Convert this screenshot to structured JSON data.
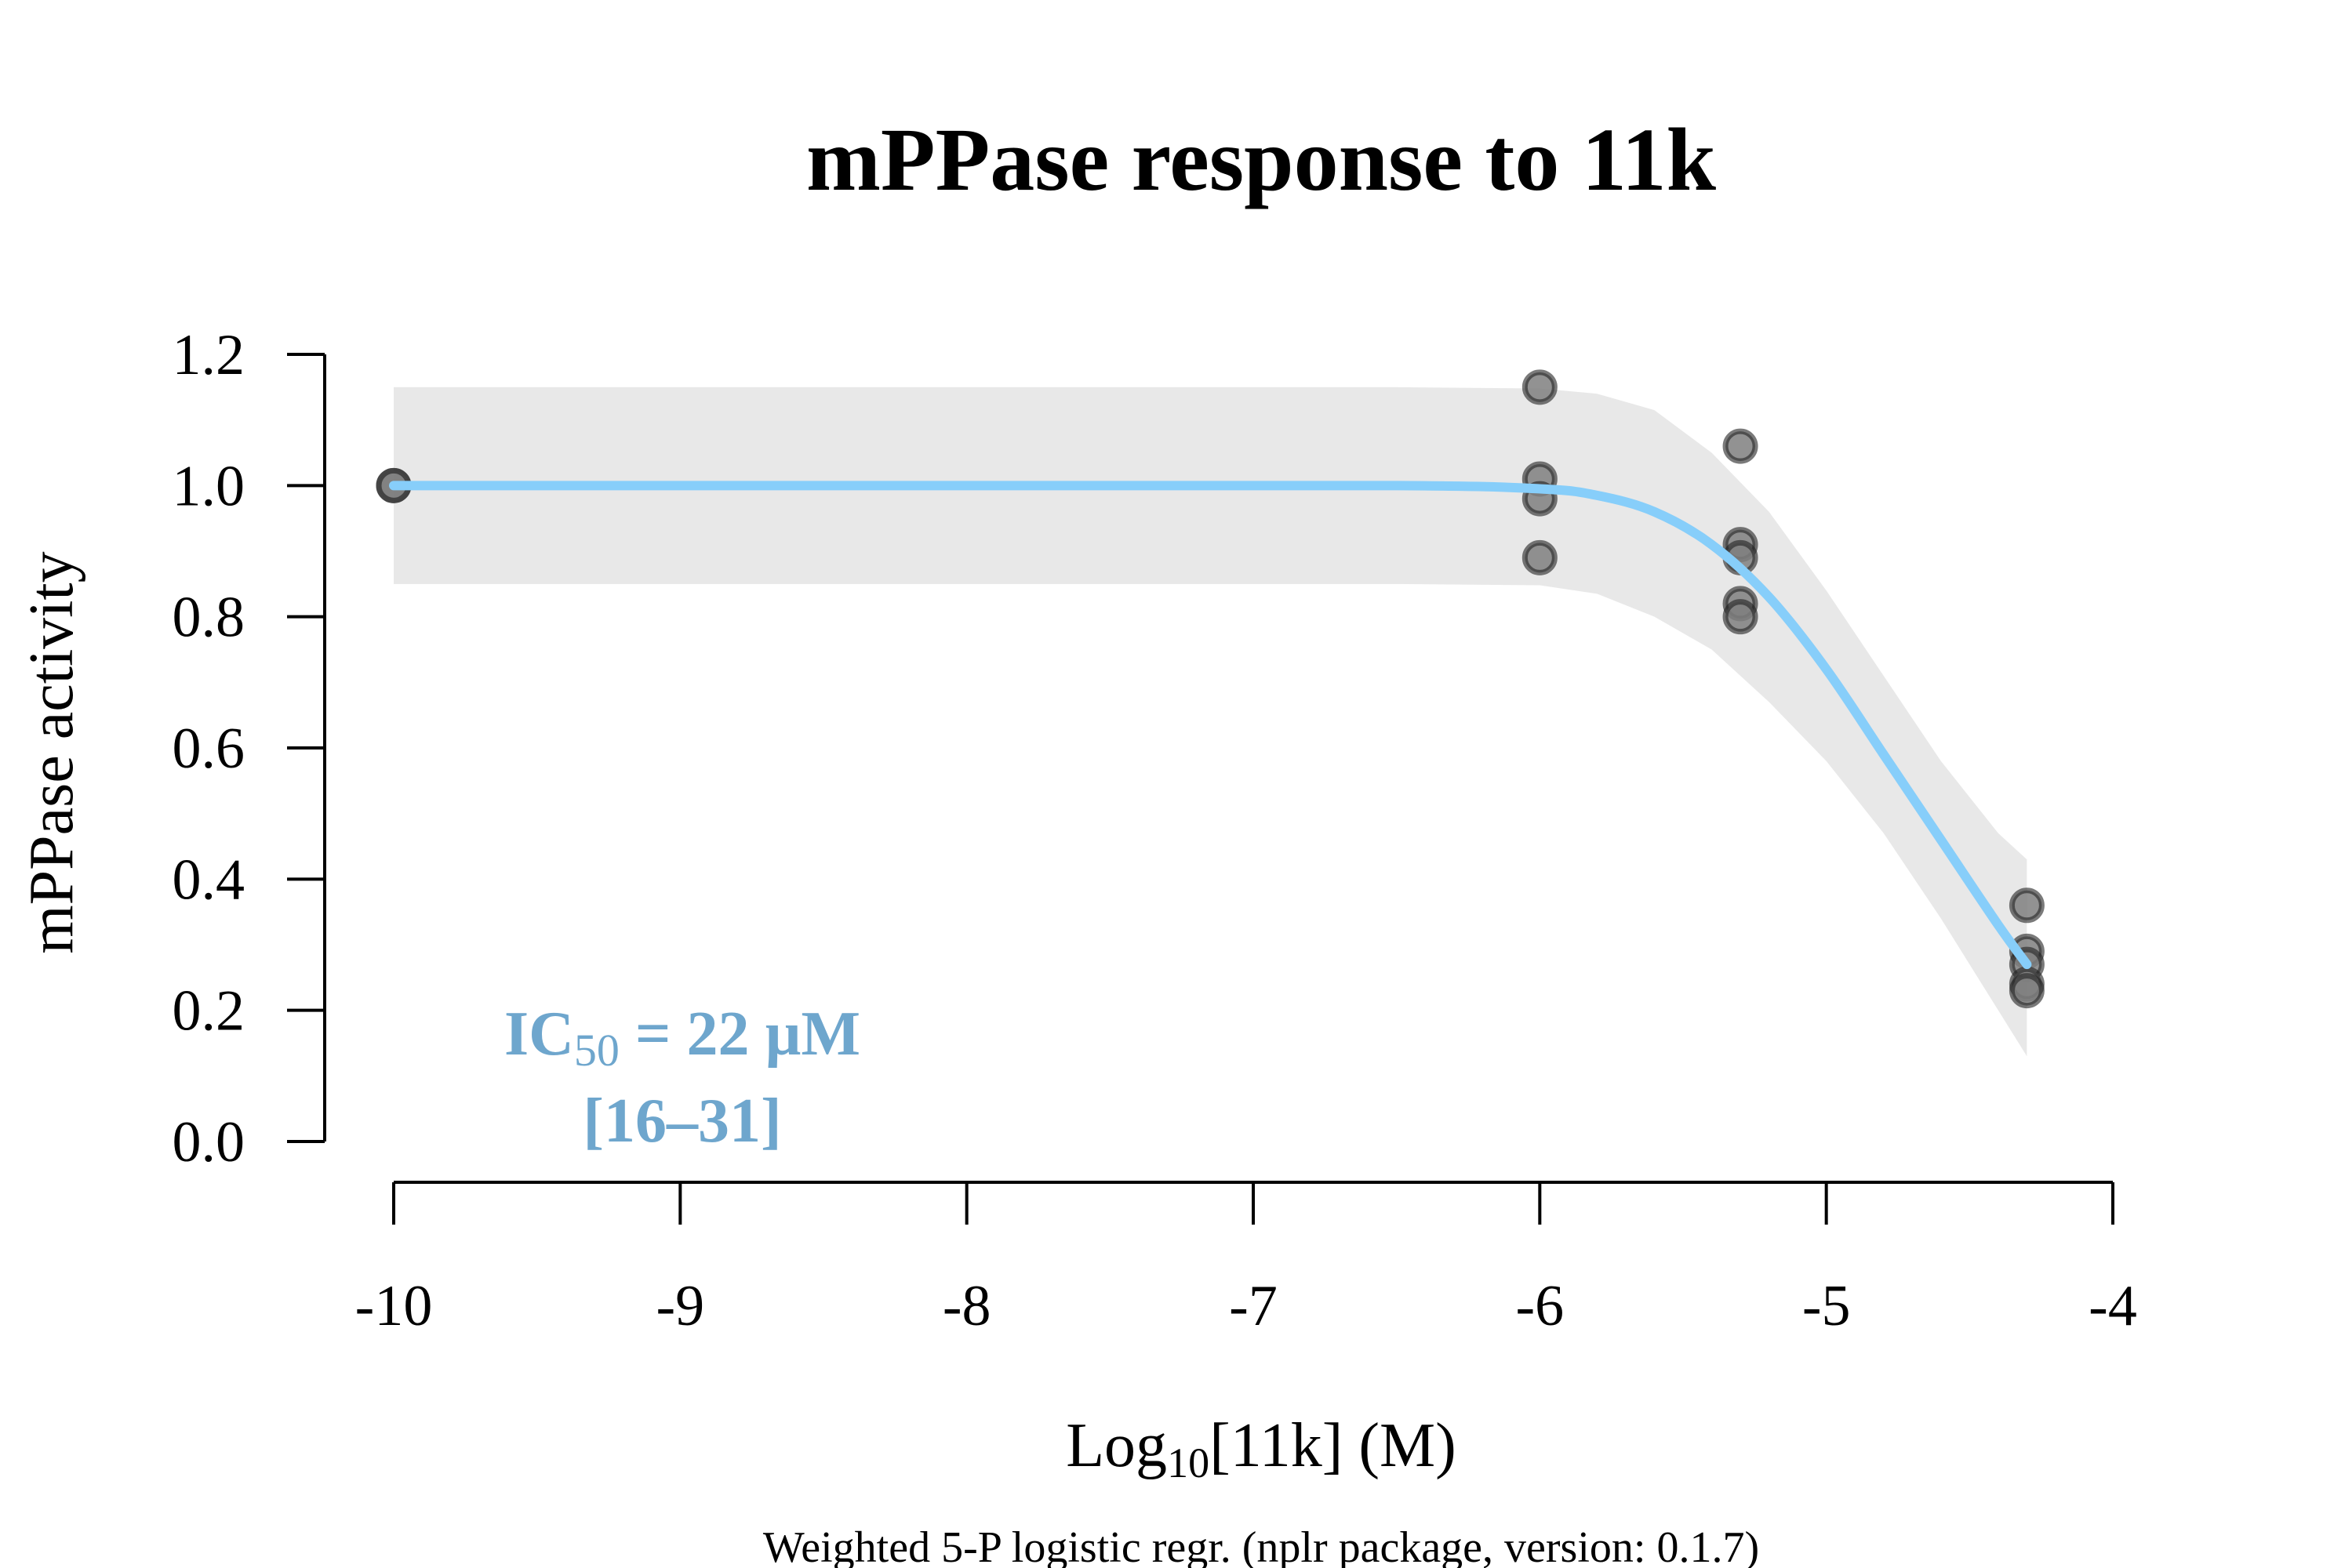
{
  "chart_data": {
    "type": "scatter",
    "title": "mPPase response to 11k",
    "xlabel": {
      "base": "Log",
      "sub": "10",
      "rest": "[11k] (M)"
    },
    "ylabel": "mPPase activity",
    "footnote": "Weighted 5-P logistic regr. (nplr package, version: 0.1.7)",
    "xlim": [
      -10,
      -4
    ],
    "ylim": [
      0,
      1.2
    ],
    "x_ticks": [
      "-10",
      "-9",
      "-8",
      "-7",
      "-6",
      "-5",
      "-4"
    ],
    "y_ticks": [
      "0.0",
      "0.2",
      "0.4",
      "0.6",
      "0.8",
      "1.0",
      "1.2"
    ],
    "annotation": {
      "prefix": "IC",
      "sub": "50",
      "suffix": " = 22 µM",
      "range": "[16–31]"
    },
    "points": [
      {
        "x": -10,
        "y": 1.0
      },
      {
        "x": -10,
        "y": 1.0
      },
      {
        "x": -6,
        "y": 1.15
      },
      {
        "x": -6,
        "y": 1.01
      },
      {
        "x": -6,
        "y": 0.98
      },
      {
        "x": -6,
        "y": 0.89
      },
      {
        "x": -5.3,
        "y": 1.06
      },
      {
        "x": -5.3,
        "y": 0.91
      },
      {
        "x": -5.3,
        "y": 0.89
      },
      {
        "x": -5.3,
        "y": 0.82
      },
      {
        "x": -5.3,
        "y": 0.8
      },
      {
        "x": -4.3,
        "y": 0.36
      },
      {
        "x": -4.3,
        "y": 0.29
      },
      {
        "x": -4.3,
        "y": 0.27
      },
      {
        "x": -4.3,
        "y": 0.24
      },
      {
        "x": -4.3,
        "y": 0.23
      }
    ],
    "fit_curve": [
      {
        "x": -10,
        "y": 1.0
      },
      {
        "x": -8,
        "y": 1.0
      },
      {
        "x": -6.5,
        "y": 1.0
      },
      {
        "x": -6.0,
        "y": 0.995
      },
      {
        "x": -5.8,
        "y": 0.985
      },
      {
        "x": -5.6,
        "y": 0.96
      },
      {
        "x": -5.4,
        "y": 0.91
      },
      {
        "x": -5.2,
        "y": 0.83
      },
      {
        "x": -5.0,
        "y": 0.72
      },
      {
        "x": -4.8,
        "y": 0.59
      },
      {
        "x": -4.6,
        "y": 0.46
      },
      {
        "x": -4.4,
        "y": 0.33
      },
      {
        "x": -4.3,
        "y": 0.27
      }
    ],
    "ci_upper": [
      {
        "x": -10,
        "y": 1.15
      },
      {
        "x": -6.5,
        "y": 1.15
      },
      {
        "x": -6.0,
        "y": 1.148
      },
      {
        "x": -5.8,
        "y": 1.14
      },
      {
        "x": -5.6,
        "y": 1.115
      },
      {
        "x": -5.4,
        "y": 1.05
      },
      {
        "x": -5.2,
        "y": 0.96
      },
      {
        "x": -5.0,
        "y": 0.84
      },
      {
        "x": -4.8,
        "y": 0.71
      },
      {
        "x": -4.6,
        "y": 0.58
      },
      {
        "x": -4.4,
        "y": 0.47
      },
      {
        "x": -4.3,
        "y": 0.43
      }
    ],
    "ci_lower": [
      {
        "x": -10,
        "y": 0.85
      },
      {
        "x": -6.5,
        "y": 0.85
      },
      {
        "x": -6.0,
        "y": 0.848
      },
      {
        "x": -5.8,
        "y": 0.835
      },
      {
        "x": -5.6,
        "y": 0.8
      },
      {
        "x": -5.4,
        "y": 0.75
      },
      {
        "x": -5.2,
        "y": 0.67
      },
      {
        "x": -5.0,
        "y": 0.58
      },
      {
        "x": -4.8,
        "y": 0.47
      },
      {
        "x": -4.6,
        "y": 0.34
      },
      {
        "x": -4.4,
        "y": 0.2
      },
      {
        "x": -4.3,
        "y": 0.13
      }
    ],
    "colors": {
      "curve": "#87cefa",
      "ci_band": "#e8e8e8",
      "annotation": "#6ea6cd",
      "point_fill": "#7f7f7f",
      "point_stroke": "#222222"
    },
    "grid": false,
    "legend": "none"
  }
}
